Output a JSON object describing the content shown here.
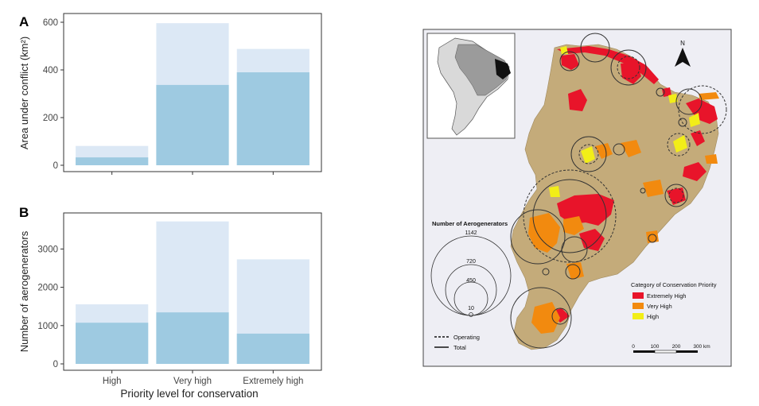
{
  "chart_data": [
    {
      "panel": "A",
      "type": "bar",
      "categories": [
        "High",
        "Very high",
        "Extremely high"
      ],
      "series": [
        {
          "name": "Total",
          "values": [
            81,
            596,
            488
          ],
          "color": "#dce8f5"
        },
        {
          "name": "Operating",
          "values": [
            33,
            337,
            390
          ],
          "color": "#9ecae1"
        }
      ],
      "ylabel": "Area under conflict (km²)",
      "ylim": [
        0,
        630
      ],
      "yticks": [
        0,
        200,
        400,
        600
      ],
      "grid": false
    },
    {
      "panel": "B",
      "type": "bar",
      "categories": [
        "High",
        "Very high",
        "Extremely high"
      ],
      "series": [
        {
          "name": "Total",
          "values": [
            1555,
            3720,
            2730
          ],
          "color": "#dce8f5"
        },
        {
          "name": "Operating",
          "values": [
            1075,
            1345,
            790
          ],
          "color": "#9ecae1"
        }
      ],
      "xlabel": "Priority level for conservation",
      "ylabel": "Number of aerogenerators",
      "ylim": [
        0,
        3900
      ],
      "yticks": [
        0,
        1000,
        2000,
        3000
      ],
      "grid": false
    }
  ],
  "map": {
    "colors": {
      "land": "#c4ab7a",
      "background": "#eeeef4",
      "extremely_high": "#e8142a",
      "very_high": "#f28a0f",
      "high": "#f2ee18"
    },
    "size_legend": {
      "title": "Number of Aerogenerators",
      "values": [
        "1142",
        "720",
        "450",
        "10"
      ]
    },
    "line_legend": {
      "operating": "Operating",
      "total": "Total"
    },
    "category_legend": {
      "title": "Category of Conservation Priority",
      "items": [
        {
          "label": "Extremely High",
          "color": "#e8142a"
        },
        {
          "label": "Very High",
          "color": "#f28a0f"
        },
        {
          "label": "High",
          "color": "#f2ee18"
        }
      ]
    },
    "scale_bar": {
      "ticks": [
        "0",
        "100",
        "200",
        "300 km"
      ]
    },
    "north_label": "N"
  }
}
